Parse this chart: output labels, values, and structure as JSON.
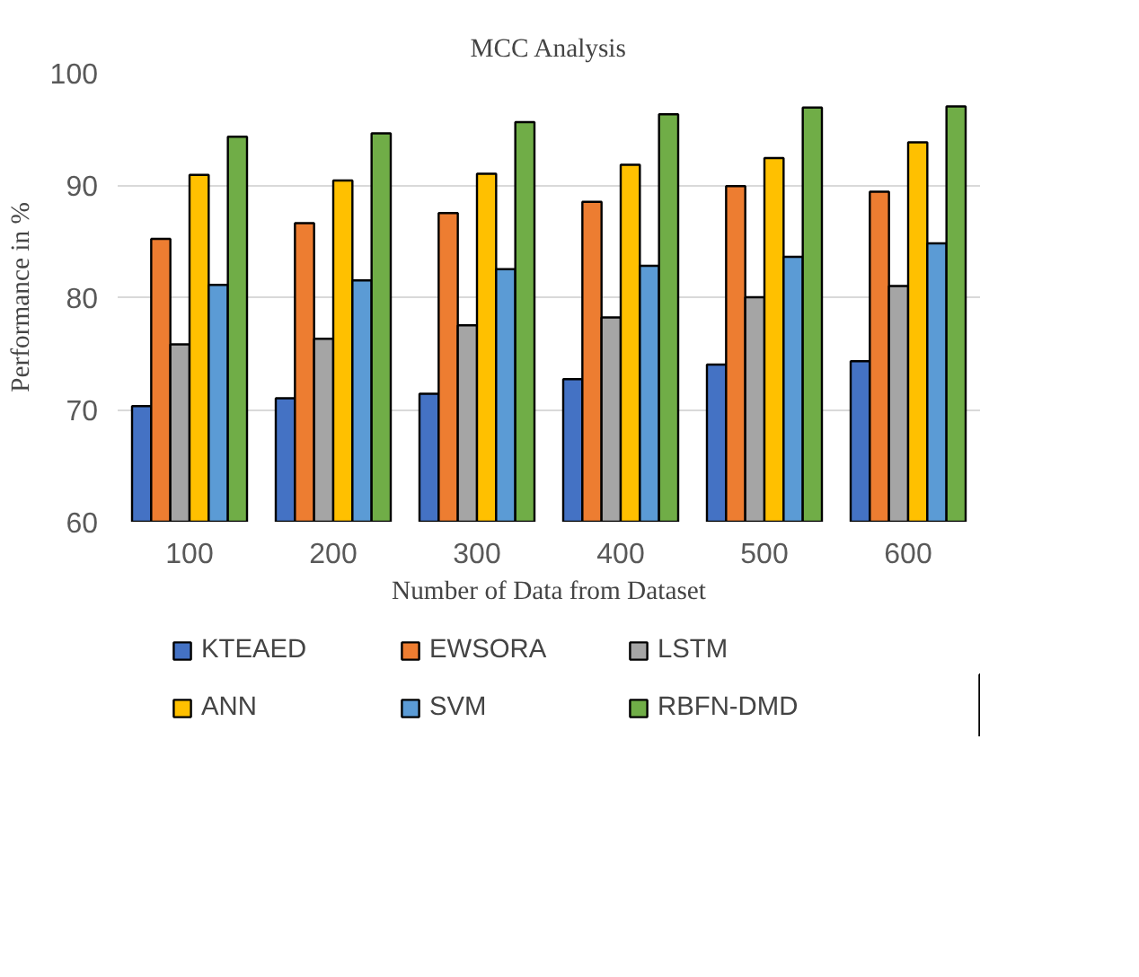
{
  "chart_data": {
    "type": "bar",
    "title": "MCC Analysis",
    "xlabel": "Number of Data from Dataset",
    "ylabel": "Performance in %",
    "categories": [
      "100",
      "200",
      "300",
      "400",
      "500",
      "600"
    ],
    "series": [
      {
        "name": "KTEAED",
        "color": "#4472c4",
        "values": [
          70.3,
          71,
          71.4,
          72.7,
          74,
          74.3
        ]
      },
      {
        "name": "EWSORA",
        "color": "#ed7d31",
        "values": [
          85.2,
          86.6,
          87.5,
          88.5,
          89.9,
          89.4
        ]
      },
      {
        "name": "LSTM",
        "color": "#a5a5a5",
        "values": [
          75.8,
          76.3,
          77.5,
          78.2,
          80,
          81
        ]
      },
      {
        "name": "ANN",
        "color": "#ffc000",
        "values": [
          90.9,
          90.4,
          91,
          91.8,
          92.4,
          93.8
        ]
      },
      {
        "name": "SVM",
        "color": "#5b9bd5",
        "values": [
          81.1,
          81.5,
          82.5,
          82.8,
          83.6,
          84.8
        ]
      },
      {
        "name": "RBFN-DMD",
        "color": "#70ad47",
        "values": [
          94.3,
          94.6,
          95.6,
          96.3,
          96.9,
          97
        ]
      }
    ],
    "ylim": [
      60,
      100
    ],
    "yticks": [
      60,
      70,
      80,
      90,
      100
    ],
    "grid": "y",
    "legend": "bottom"
  }
}
